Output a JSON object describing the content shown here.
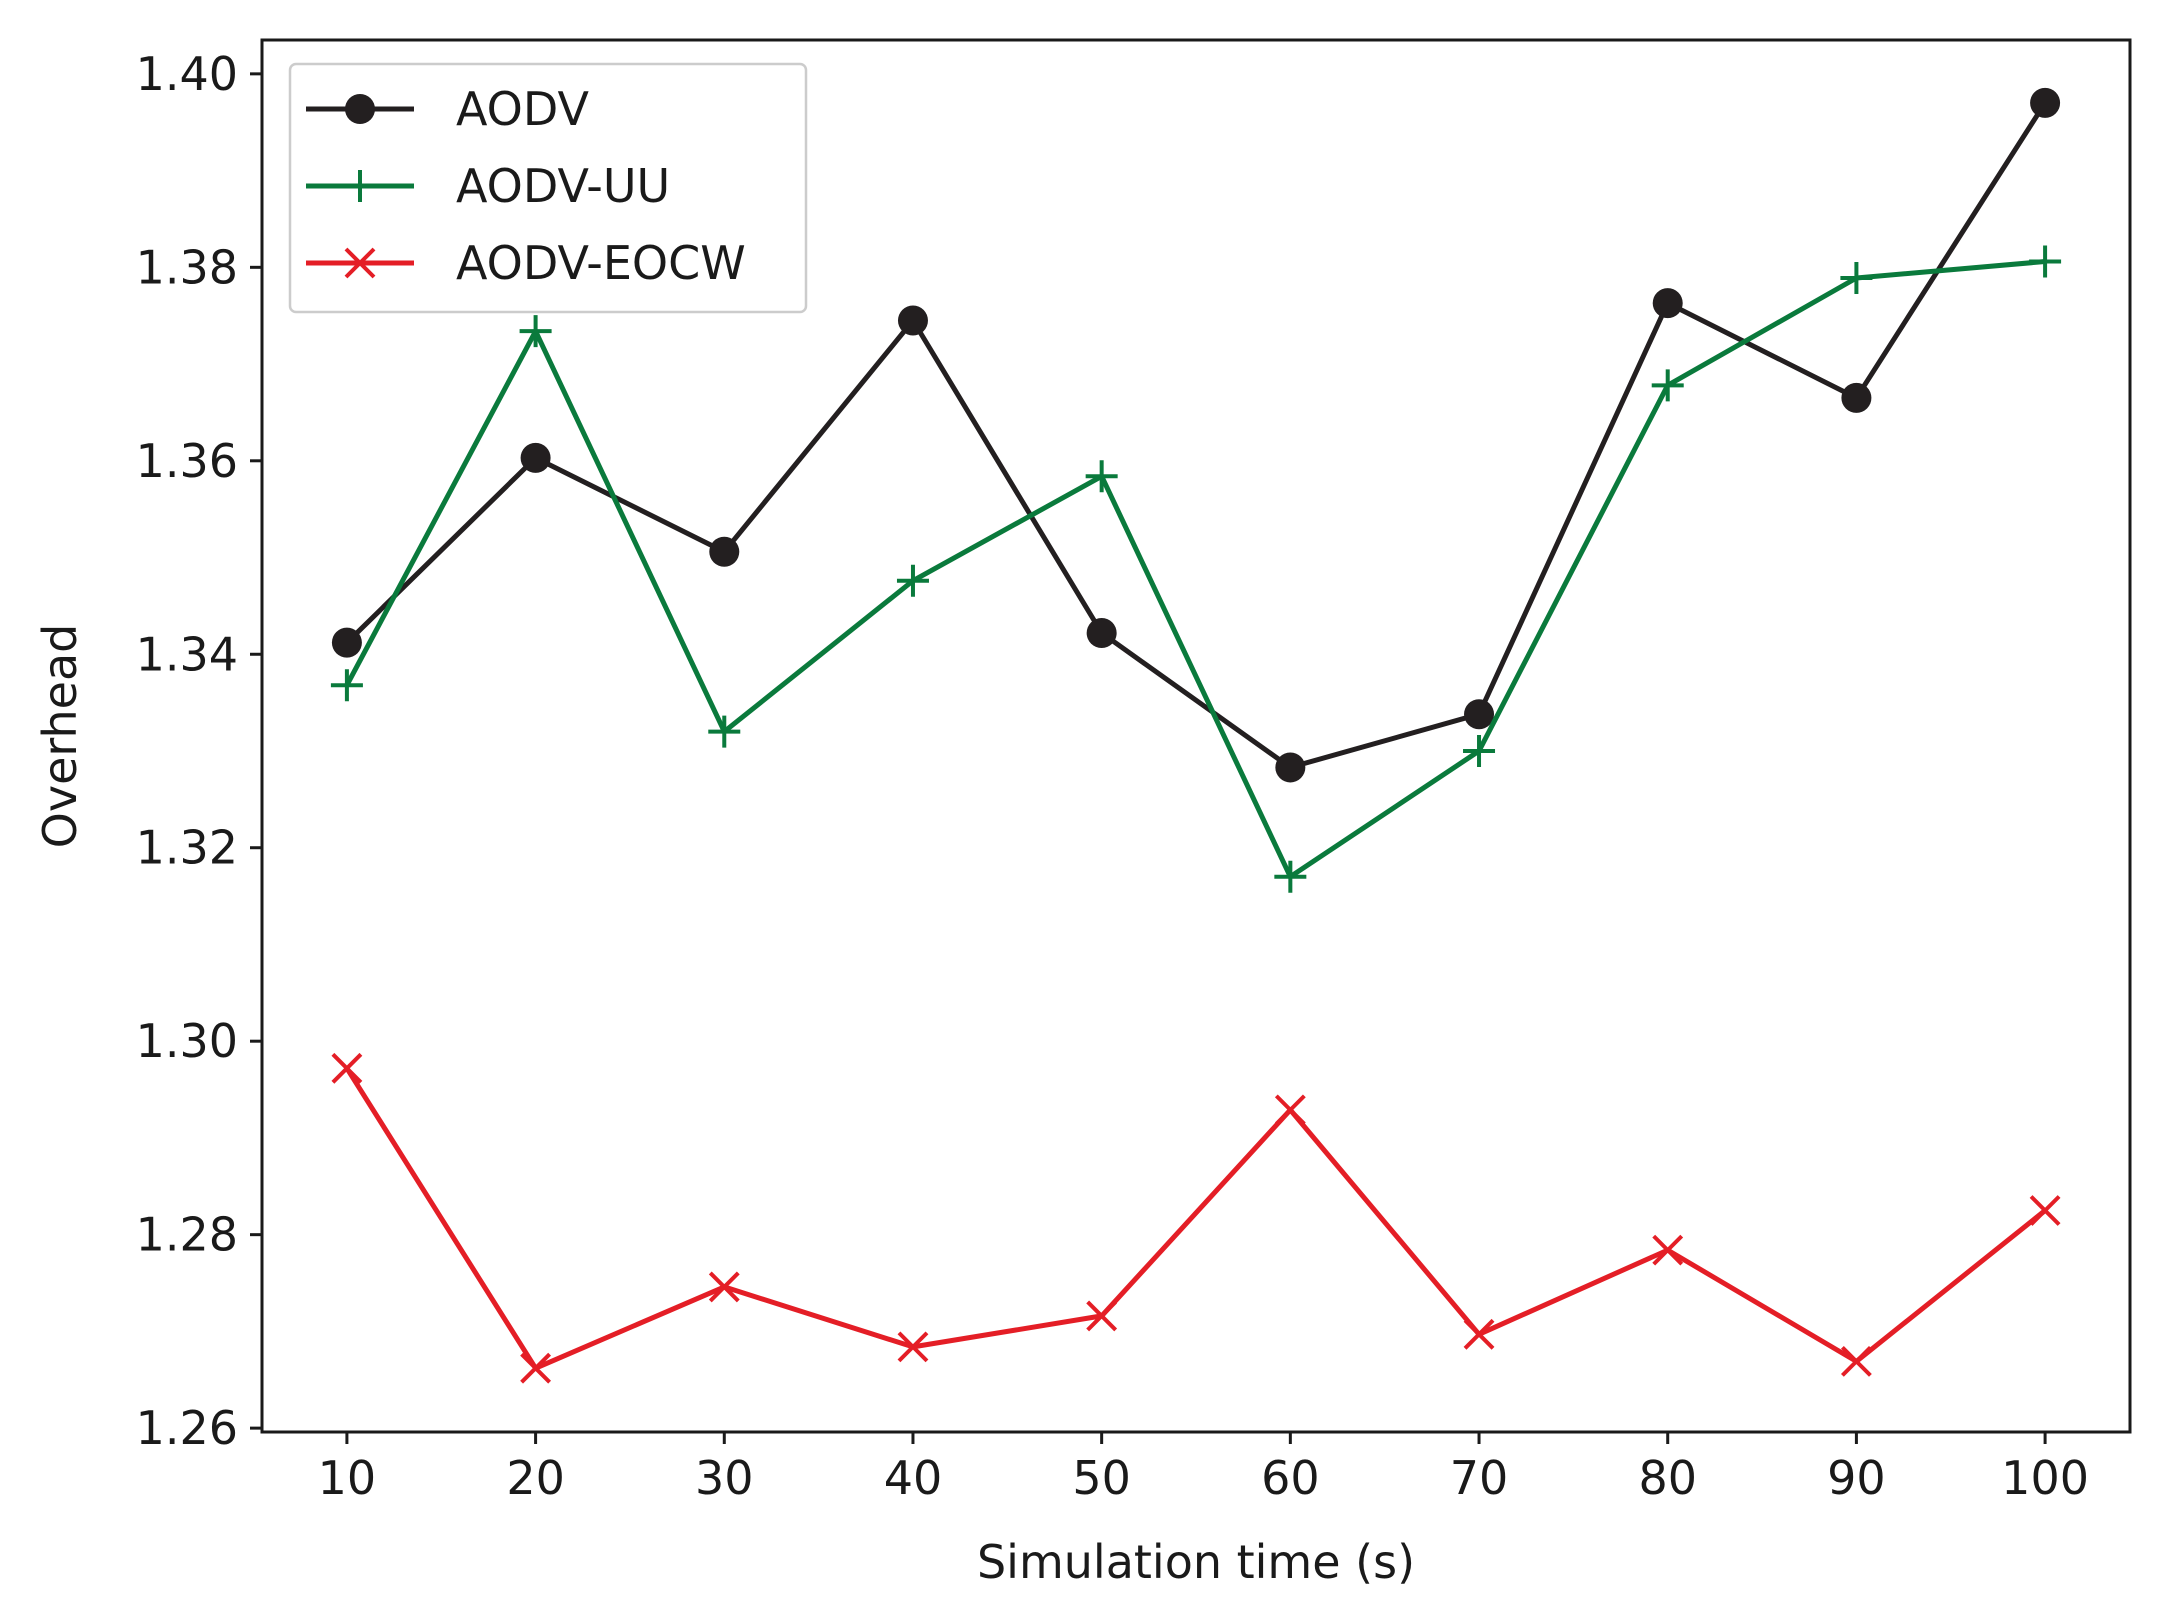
{
  "chart_data": {
    "type": "line",
    "title": "",
    "xlabel": "Simulation time (s)",
    "ylabel": "Overhead",
    "x": [
      10,
      20,
      30,
      40,
      50,
      60,
      70,
      80,
      90,
      100
    ],
    "xlim": [
      5.5,
      104.5
    ],
    "ylim": [
      1.2596,
      1.4035
    ],
    "xticks": [
      10,
      20,
      30,
      40,
      50,
      60,
      70,
      80,
      90,
      100
    ],
    "xtick_labels": [
      "10",
      "20",
      "30",
      "40",
      "50",
      "60",
      "70",
      "80",
      "90",
      "100"
    ],
    "yticks": [
      1.26,
      1.28,
      1.3,
      1.32,
      1.34,
      1.36,
      1.38,
      1.4
    ],
    "ytick_labels": [
      "1.26",
      "1.28",
      "1.30",
      "1.32",
      "1.34",
      "1.36",
      "1.38",
      "1.40"
    ],
    "grid": false,
    "legend_position": "top-left",
    "series": [
      {
        "name": "AODV",
        "color": "#231f20",
        "marker": "circle",
        "values": [
          1.3412,
          1.3603,
          1.3506,
          1.3745,
          1.3422,
          1.3283,
          1.3338,
          1.3763,
          1.3665,
          1.397
        ]
      },
      {
        "name": "AODV-UU",
        "color": "#0a7a3c",
        "marker": "plus",
        "values": [
          1.3368,
          1.3734,
          1.332,
          1.3476,
          1.3584,
          1.317,
          1.33,
          1.3678,
          1.3789,
          1.3806
        ]
      },
      {
        "name": "AODV-EOCW",
        "color": "#e41e26",
        "marker": "x",
        "values": [
          1.2972,
          1.2662,
          1.2746,
          1.2684,
          1.2716,
          1.2929,
          1.2697,
          1.2784,
          1.2669,
          1.2825
        ]
      }
    ]
  }
}
